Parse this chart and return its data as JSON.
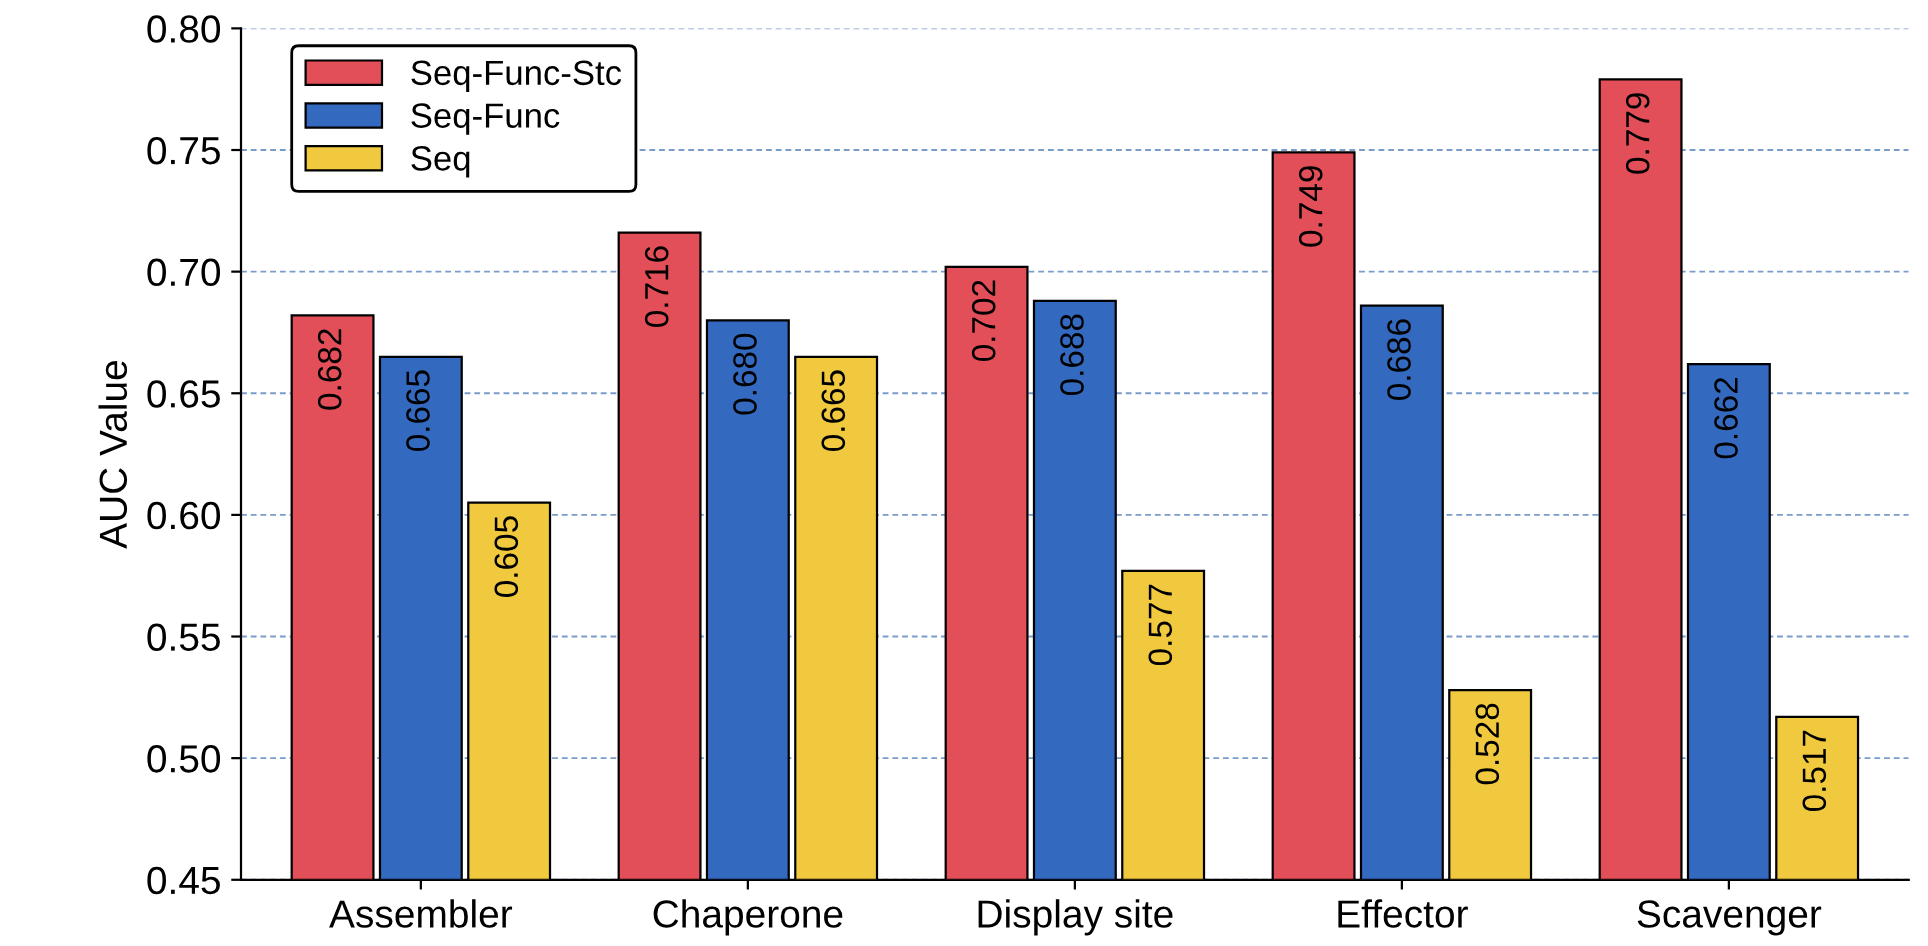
{
  "chart_data": {
    "type": "bar",
    "ylabel": "AUC Value",
    "categories": [
      "Assembler",
      "Chaperone",
      "Display site",
      "Effector",
      "Scavenger"
    ],
    "series": [
      {
        "name": "Seq-Func-Stc",
        "color": "#e34f58",
        "values": [
          0.682,
          0.716,
          0.702,
          0.749,
          0.779
        ],
        "value_labels": [
          "0.682",
          "0.716",
          "0.702",
          "0.749",
          "0.779"
        ]
      },
      {
        "name": "Seq-Func",
        "color": "#3469c0",
        "values": [
          0.665,
          0.68,
          0.688,
          0.686,
          0.662
        ],
        "value_labels": [
          "0.665",
          "0.680",
          "0.688",
          "0.686",
          "0.662"
        ]
      },
      {
        "name": "Seq",
        "color": "#f0c93e",
        "values": [
          0.605,
          0.665,
          0.577,
          0.528,
          0.517
        ],
        "value_labels": [
          "0.605",
          "0.665",
          "0.577",
          "0.528",
          "0.517"
        ]
      }
    ],
    "ylim": [
      0.45,
      0.8
    ],
    "yticks": [
      0.45,
      {
        "value": 0.5,
        "label": "0.50"
      },
      0.55,
      {
        "value": 0.6,
        "label": "0.60"
      },
      0.65,
      {
        "value": 0.7,
        "label": "0.70"
      },
      0.75,
      {
        "value": 0.8,
        "label": "0.80"
      }
    ],
    "grid": "y",
    "legend": "top left"
  }
}
